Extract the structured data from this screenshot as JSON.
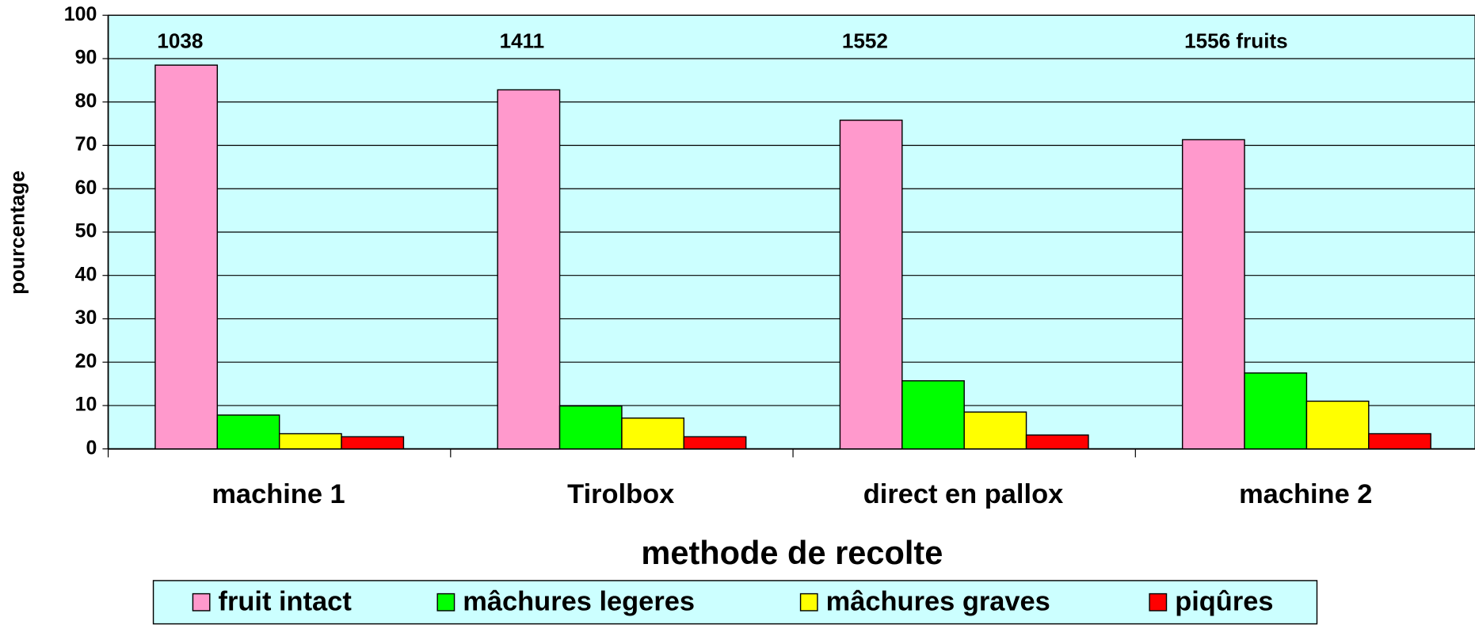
{
  "chart_data": {
    "type": "bar",
    "y_label": "pourcentage",
    "x_label": "methode de recolte",
    "categories": [
      "machine 1",
      "Tirolbox",
      "direct en pallox",
      "machine 2"
    ],
    "annotations": [
      "1038",
      "1411",
      "1552",
      "1556 fruits"
    ],
    "series": [
      {
        "name": "fruit intact",
        "color": "#ff99cc",
        "values": [
          88.5,
          82.8,
          75.8,
          71.3
        ]
      },
      {
        "name": "mâchures legeres",
        "color": "#00ff00",
        "values": [
          7.8,
          9.9,
          15.7,
          17.5
        ]
      },
      {
        "name": "mâchures graves",
        "color": "#ffff00",
        "values": [
          3.5,
          7.1,
          8.5,
          11.0
        ]
      },
      {
        "name": "piqûres",
        "color": "#ff0000",
        "values": [
          2.8,
          2.8,
          3.2,
          3.5
        ]
      }
    ],
    "ylim": [
      0,
      100
    ],
    "yticks": [
      0,
      10,
      20,
      30,
      40,
      50,
      60,
      70,
      80,
      90,
      100
    ],
    "grid": true,
    "legend": "bottom",
    "background": "#ccffff"
  }
}
